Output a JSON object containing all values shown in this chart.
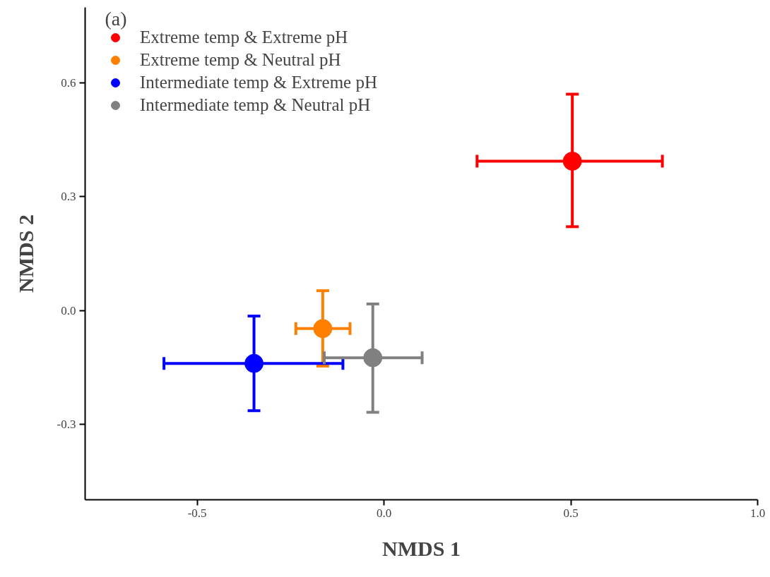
{
  "chart_data": {
    "type": "scatter",
    "xlabel": "NMDS 1",
    "ylabel": "NMDS 2",
    "annotations": [
      "(a)"
    ],
    "xlim": [
      -0.8,
      1.0
    ],
    "xticks": [
      -0.5,
      {
        "value": 0,
        "label": "0.0"
      },
      0.5,
      {
        "value": 1,
        "label": "1.0"
      }
    ],
    "ylim": [
      -0.5,
      0.8
    ],
    "yticks": [
      -0.3,
      {
        "value": 0,
        "label": "0.0"
      },
      0.3,
      0.6
    ],
    "grid": false,
    "legend": "top left",
    "marker": "circle",
    "series": [
      {
        "name": "Extreme temp & Extreme pH",
        "color": "#ff0000",
        "x": [
          0.504
        ],
        "values": [
          0.394
        ],
        "xerrors": [
          [
            0.249,
            0.745
          ]
        ],
        "errors": [
          [
            0.221,
            0.571
          ]
        ]
      },
      {
        "name": "Extreme temp & Neutral pH",
        "color": "#ff8000",
        "x": [
          -0.164
        ],
        "values": [
          -0.048
        ],
        "xerrors": [
          [
            -0.236,
            -0.091
          ]
        ],
        "errors": [
          [
            -0.147,
            0.052
          ]
        ]
      },
      {
        "name": "Intermediate temp & Extreme pH",
        "color": "#0000ff",
        "x": [
          -0.348
        ],
        "values": [
          -0.14
        ],
        "xerrors": [
          [
            -0.589,
            -0.11
          ]
        ],
        "errors": [
          [
            -0.265,
            -0.015
          ]
        ]
      },
      {
        "name": "Intermediate temp & Neutral pH",
        "color": "#808080",
        "x": [
          -0.03
        ],
        "values": [
          -0.125
        ],
        "xerrors": [
          [
            -0.16,
            0.102
          ]
        ],
        "errors": [
          [
            -0.269,
            0.017
          ]
        ]
      }
    ]
  }
}
